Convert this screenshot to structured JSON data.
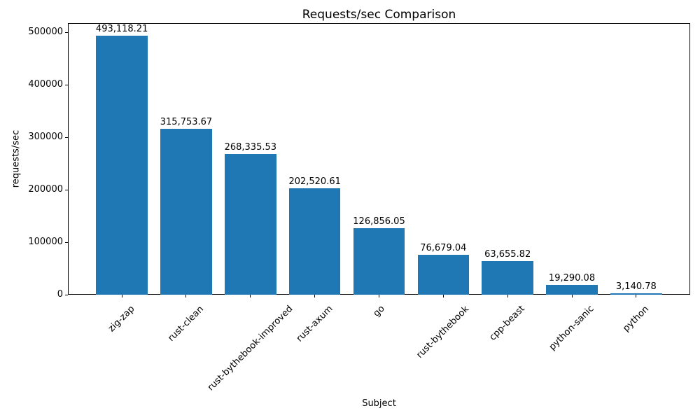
{
  "chart_data": {
    "type": "bar",
    "title": "Requests/sec Comparison",
    "xlabel": "Subject",
    "ylabel": "requests/sec",
    "categories": [
      "zig-zap",
      "rust-clean",
      "rust-bythebook-improved",
      "rust-axum",
      "go",
      "rust-bythebook",
      "cpp-beast",
      "python-sanic",
      "python"
    ],
    "values": [
      493118.21,
      315753.67,
      268335.53,
      202520.61,
      126856.05,
      76679.04,
      63655.82,
      19290.08,
      3140.78
    ],
    "value_labels": [
      "493,118.21",
      "315,753.67",
      "268,335.53",
      "202,520.61",
      "126,856.05",
      "76,679.04",
      "63,655.82",
      "19,290.08",
      "3,140.78"
    ],
    "yticks": [
      0,
      100000,
      200000,
      300000,
      400000,
      500000
    ],
    "ytick_labels": [
      "0",
      "100000",
      "200000",
      "300000",
      "400000",
      "500000"
    ],
    "ylim": [
      0,
      517774
    ],
    "bar_color": "#1f77b4",
    "axis_color": "#000000",
    "grid": false,
    "legend": null
  }
}
